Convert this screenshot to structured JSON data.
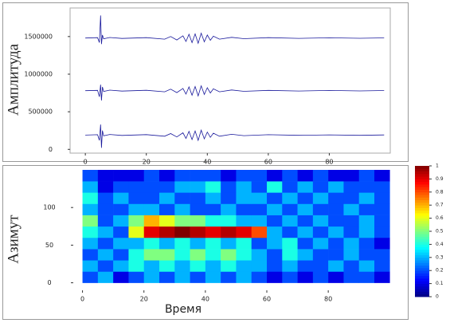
{
  "chart_data": [
    {
      "type": "line",
      "ylabel": "Амплитуда",
      "x": [
        0,
        4,
        4.6,
        5,
        5.3,
        5.6,
        6,
        8,
        12,
        20,
        26,
        28,
        30,
        32,
        33,
        34,
        35,
        36,
        37,
        38,
        39,
        40,
        41,
        42,
        44,
        48,
        52,
        60,
        70,
        80,
        90,
        98
      ],
      "series": [
        {
          "color": "#1a1a9c",
          "values": [
            1480000,
            1485000,
            1420000,
            1780000,
            1400000,
            1520000,
            1470000,
            1488000,
            1475000,
            1486000,
            1465000,
            1500000,
            1455000,
            1510000,
            1435000,
            1530000,
            1420000,
            1535000,
            1410000,
            1545000,
            1430000,
            1520000,
            1450000,
            1505000,
            1465000,
            1490000,
            1472000,
            1485000,
            1476000,
            1483000,
            1477000,
            1482000
          ]
        },
        {
          "color": "#1a1a9c",
          "values": [
            780000,
            785000,
            700000,
            860000,
            650000,
            830000,
            770000,
            788000,
            775000,
            786000,
            765000,
            800000,
            755000,
            810000,
            735000,
            830000,
            720000,
            835000,
            710000,
            845000,
            730000,
            820000,
            750000,
            805000,
            765000,
            790000,
            772000,
            785000,
            776000,
            783000,
            777000,
            782000
          ]
        },
        {
          "color": "#1a1a9c",
          "values": [
            190000,
            195000,
            120000,
            330000,
            20000,
            250000,
            180000,
            198000,
            185000,
            196000,
            175000,
            210000,
            165000,
            220000,
            145000,
            240000,
            130000,
            245000,
            120000,
            255000,
            140000,
            230000,
            160000,
            215000,
            175000,
            200000,
            182000,
            195000,
            186000,
            193000,
            187000,
            192000
          ]
        }
      ],
      "xlim": [
        -5,
        100
      ],
      "ylim": [
        -50000,
        1880000
      ],
      "xticks": [
        0,
        20,
        40,
        60,
        80
      ],
      "yticks": [
        0,
        500000,
        1000000,
        1500000
      ]
    },
    {
      "type": "heatmap",
      "ylabel": "Азимут",
      "xlabel": "Время",
      "x_bins": [
        0,
        5,
        10,
        15,
        20,
        25,
        30,
        35,
        40,
        45,
        50,
        55,
        60,
        65,
        70,
        75,
        80,
        85,
        90,
        95,
        100
      ],
      "y_bins": [
        0,
        15,
        30,
        45,
        60,
        75,
        90,
        105,
        120,
        135,
        150
      ],
      "values": [
        [
          0.2,
          0.3,
          0.1,
          0.2,
          0.3,
          0.2,
          0.3,
          0.2,
          0.3,
          0.2,
          0.3,
          0.2,
          0.1,
          0.2,
          0.1,
          0.2,
          0.1,
          0.2,
          0.2,
          0.1
        ],
        [
          0.3,
          0.2,
          0.3,
          0.4,
          0.3,
          0.4,
          0.3,
          0.4,
          0.3,
          0.4,
          0.3,
          0.3,
          0.2,
          0.3,
          0.2,
          0.2,
          0.3,
          0.2,
          0.3,
          0.2
        ],
        [
          0.2,
          0.3,
          0.2,
          0.4,
          0.5,
          0.5,
          0.4,
          0.5,
          0.4,
          0.5,
          0.4,
          0.3,
          0.2,
          0.4,
          0.3,
          0.2,
          0.2,
          0.3,
          0.2,
          0.2
        ],
        [
          0.3,
          0.2,
          0.3,
          0.3,
          0.4,
          0.3,
          0.4,
          0.3,
          0.4,
          0.3,
          0.4,
          0.2,
          0.3,
          0.4,
          0.2,
          0.3,
          0.2,
          0.3,
          0.2,
          0.1
        ],
        [
          0.4,
          0.3,
          0.2,
          0.6,
          0.9,
          0.95,
          1,
          0.95,
          0.9,
          0.95,
          0.9,
          0.8,
          0.3,
          0.2,
          0.3,
          0.2,
          0.3,
          0.2,
          0.3,
          0.2
        ],
        [
          0.5,
          0.2,
          0.3,
          0.5,
          0.7,
          0.6,
          0.5,
          0.5,
          0.4,
          0.4,
          0.3,
          0.3,
          0.2,
          0.3,
          0.2,
          0.3,
          0.2,
          0.2,
          0.3,
          0.2
        ],
        [
          0.3,
          0.2,
          0.2,
          0.3,
          0.3,
          0.2,
          0.3,
          0.2,
          0.2,
          0.3,
          0.2,
          0.2,
          0.3,
          0.2,
          0.3,
          0.2,
          0.2,
          0.3,
          0.2,
          0.2
        ],
        [
          0.4,
          0.2,
          0.3,
          0.2,
          0.2,
          0.3,
          0.2,
          0.2,
          0.3,
          0.2,
          0.3,
          0.3,
          0.2,
          0.3,
          0.2,
          0.3,
          0.2,
          0.2,
          0.3,
          0.2
        ],
        [
          0.3,
          0.1,
          0.2,
          0.2,
          0.2,
          0.2,
          0.3,
          0.3,
          0.4,
          0.2,
          0.3,
          0.2,
          0.4,
          0.2,
          0.3,
          0.2,
          0.3,
          0.2,
          0.2,
          0.2
        ],
        [
          0.2,
          0.1,
          0.1,
          0.1,
          0.2,
          0.1,
          0.2,
          0.2,
          0.2,
          0.1,
          0.2,
          0.2,
          0.1,
          0.2,
          0.1,
          0.2,
          0.1,
          0.1,
          0.2,
          0.1
        ]
      ],
      "xlim": [
        -3,
        102
      ],
      "ylim": [
        -10,
        150
      ],
      "xticks": [
        0,
        20,
        40,
        60,
        80
      ],
      "yticks": [
        0,
        50,
        100
      ],
      "clim": [
        0,
        1
      ],
      "cticks": [
        0,
        0.1,
        0.2,
        0.3,
        0.4,
        0.5,
        0.6,
        0.7,
        0.8,
        0.9,
        1
      ]
    }
  ]
}
